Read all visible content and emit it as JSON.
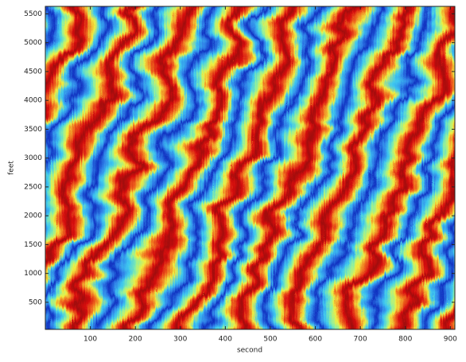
{
  "chart_data": {
    "type": "heatmap",
    "x_label": "second",
    "y_label": "feet",
    "xlim": [
      0,
      910
    ],
    "xticks": [
      100,
      200,
      300,
      400,
      500,
      600,
      700,
      800,
      900
    ],
    "ylim": [
      30,
      5630
    ],
    "yticks": [
      500,
      1000,
      1500,
      2000,
      2500,
      3000,
      3500,
      4000,
      4500,
      5000,
      5500
    ],
    "colormap": [
      "#1030c0",
      "#2f7fe8",
      "#3ec8f0",
      "#8ef0a0",
      "#f0f040",
      "#f07020",
      "#d81010",
      "#a00808",
      "#d81010",
      "#f07020",
      "#f0f040",
      "#3ec8f0",
      "#2f7fe8",
      "#1030c0"
    ]
  }
}
